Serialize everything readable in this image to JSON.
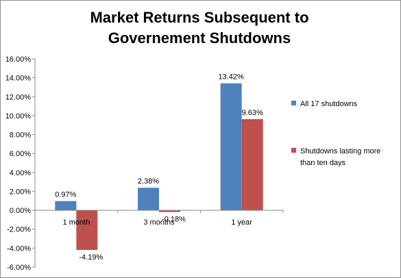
{
  "chart_data": {
    "type": "bar",
    "title": "Market Returns Subsequent to Governement Shutdowns",
    "categories": [
      "1 month",
      "3 months",
      "1 year"
    ],
    "series": [
      {
        "name": "All 17 shutdowns",
        "values": [
          0.97,
          2.38,
          13.42
        ],
        "labels": [
          "0.97%",
          "2.38%",
          "13.42%"
        ],
        "color": "#4f81bd"
      },
      {
        "name": "Shutdowns lasting more than ten days",
        "values": [
          -4.19,
          -0.18,
          9.63
        ],
        "labels": [
          "-4.19%",
          "-0.18%",
          "9.63%"
        ],
        "color": "#c0504d"
      }
    ],
    "ylim": [
      -6,
      16
    ],
    "yticks": [
      16,
      14,
      12,
      10,
      8,
      6,
      4,
      2,
      0,
      -2,
      -4,
      -6
    ],
    "ytick_labels": [
      "16.00%",
      "14.00%",
      "12.00%",
      "10.00%",
      "8.00%",
      "6.00%",
      "4.00%",
      "2.00%",
      "0.00%",
      "-2.00%",
      "-4.00%",
      "-6.00%"
    ],
    "grid": false,
    "legend_position": "right"
  }
}
